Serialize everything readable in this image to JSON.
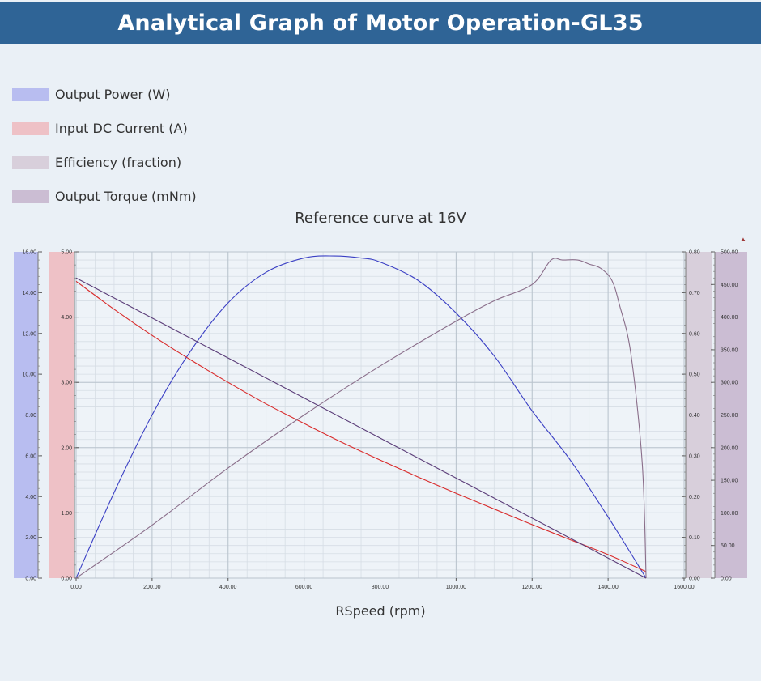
{
  "header": {
    "title": "Analytical Graph of Motor Operation-GL35"
  },
  "legend": [
    {
      "label": "Output Power (W)",
      "color": "#b8bdf0"
    },
    {
      "label": "Input DC Current (A)",
      "color": "#eec1c6"
    },
    {
      "label": "Efficiency (fraction)",
      "color": "#d8cfdb"
    },
    {
      "label": "Output Torque (mNm)",
      "color": "#cbbdd3"
    }
  ],
  "chart_data": {
    "type": "line",
    "title": "Reference curve at 16V",
    "xlabel": "RSpeed (rpm)",
    "xlim": [
      0,
      1600
    ],
    "x_ticks": [
      "0.00",
      "200.00",
      "400.00",
      "600.00",
      "800.00",
      "1000.00",
      "1200.00",
      "1400.00",
      "1600.00"
    ],
    "grid": true,
    "axes": [
      {
        "id": "power",
        "side": "left",
        "band_color": "#b8bdf0",
        "ylim": [
          0,
          16
        ],
        "ticks": [
          "0.00",
          "2.00",
          "4.00",
          "6.00",
          "8.00",
          "10.00",
          "12.00",
          "14.00",
          "16.00"
        ]
      },
      {
        "id": "current",
        "side": "left",
        "band_color": "#eec1c6",
        "ylim": [
          0,
          5
        ],
        "ticks": [
          "0.00",
          "1.00",
          "2.00",
          "3.00",
          "4.00",
          "5.00"
        ]
      },
      {
        "id": "efficiency",
        "side": "right",
        "band_color": "#d8cfdb",
        "ylim": [
          0,
          0.8
        ],
        "ticks": [
          "0.00",
          "0.10",
          "0.20",
          "0.30",
          "0.40",
          "0.50",
          "0.60",
          "0.70",
          "0.80"
        ]
      },
      {
        "id": "torque",
        "side": "right",
        "band_color": "#cbbdd3",
        "ylim": [
          0,
          500
        ],
        "ticks": [
          "0.00",
          "50.00",
          "100.00",
          "150.00",
          "200.00",
          "250.00",
          "300.00",
          "350.00",
          "400.00",
          "450.00",
          "500.00"
        ]
      }
    ],
    "series": [
      {
        "name": "Output Power (W)",
        "axis": "power",
        "color": "#3a3fc4",
        "x": [
          0,
          100,
          200,
          300,
          400,
          500,
          600,
          680,
          750,
          800,
          900,
          1000,
          1100,
          1200,
          1300,
          1400,
          1500
        ],
        "y": [
          0,
          4.2,
          8.0,
          11.1,
          13.5,
          15.0,
          15.7,
          15.8,
          15.7,
          15.5,
          14.6,
          13.0,
          10.9,
          8.2,
          5.8,
          3.0,
          0
        ]
      },
      {
        "name": "Input DC Current (A)",
        "axis": "current",
        "color": "#d92b2b",
        "x": [
          0,
          100,
          200,
          300,
          400,
          500,
          600,
          700,
          800,
          900,
          1000,
          1100,
          1200,
          1300,
          1400,
          1500
        ],
        "y": [
          4.55,
          4.12,
          3.72,
          3.35,
          3.0,
          2.67,
          2.37,
          2.08,
          1.81,
          1.55,
          1.3,
          1.06,
          0.82,
          0.59,
          0.36,
          0.1
        ]
      },
      {
        "name": "Efficiency (fraction)",
        "axis": "efficiency",
        "color": "#8a6e8a",
        "x": [
          0,
          200,
          400,
          600,
          800,
          1000,
          1100,
          1200,
          1250,
          1280,
          1320,
          1350,
          1380,
          1410,
          1430,
          1460,
          1490,
          1500
        ],
        "y": [
          0,
          0.13,
          0.27,
          0.4,
          0.52,
          0.63,
          0.68,
          0.72,
          0.78,
          0.78,
          0.78,
          0.77,
          0.76,
          0.73,
          0.67,
          0.55,
          0.28,
          0
        ]
      },
      {
        "name": "Output Torque (mNm)",
        "axis": "torque",
        "color": "#5a3c78",
        "x": [
          0,
          1500
        ],
        "y": [
          460,
          0
        ]
      }
    ]
  }
}
